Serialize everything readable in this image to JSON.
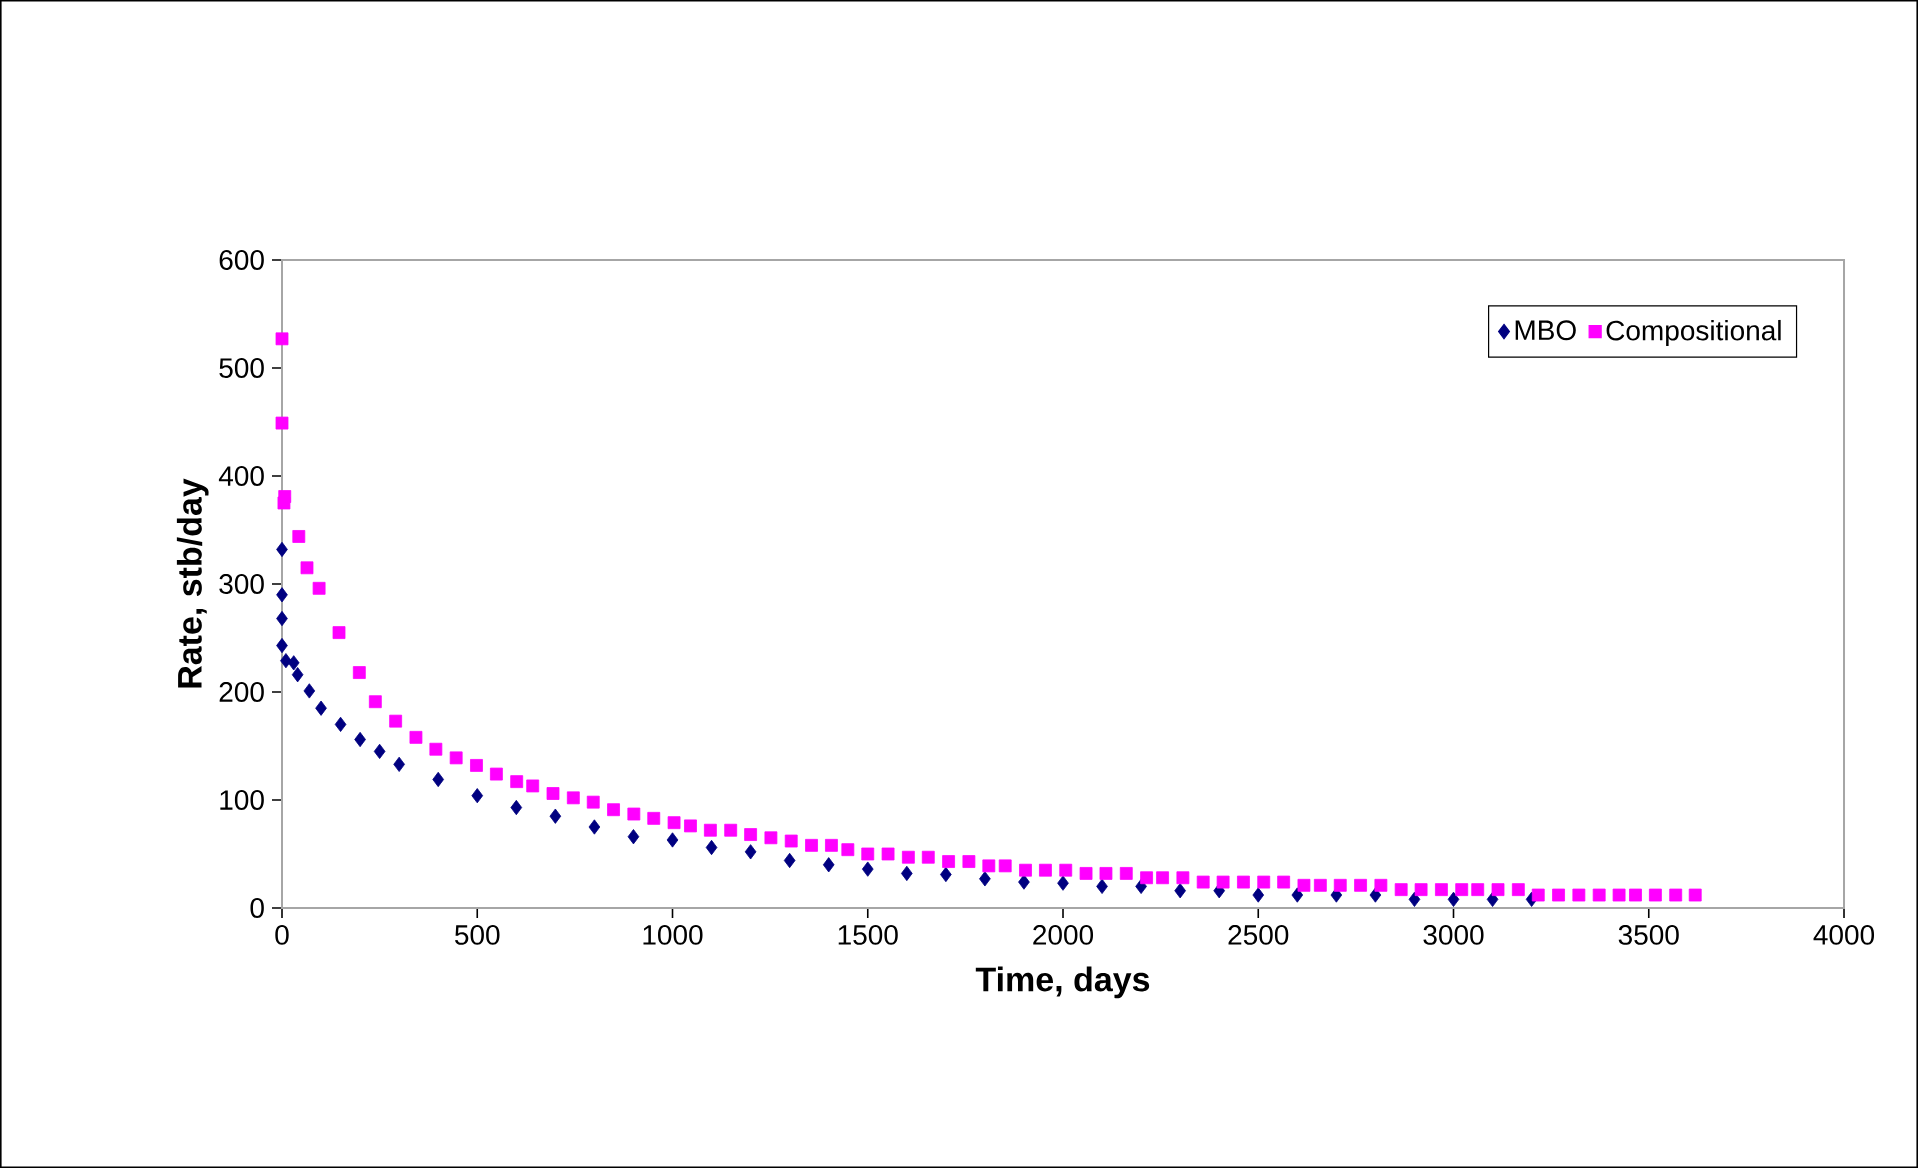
{
  "chart_data": {
    "type": "scatter",
    "xlabel": "Time, days",
    "ylabel": "Rate, stb/day",
    "xlim": [
      0,
      4000
    ],
    "xticks": [
      0,
      500,
      1000,
      1500,
      2000,
      2500,
      3000,
      3500,
      4000
    ],
    "ylim": [
      0,
      600
    ],
    "yticks": [
      0,
      100,
      200,
      300,
      400,
      500,
      600
    ],
    "legend": "top right",
    "series": [
      {
        "name": "MBO",
        "color": "#000080",
        "marker": "diamond",
        "x": [
          0,
          0,
          0,
          0,
          10,
          30,
          40,
          70,
          100,
          150,
          200,
          250,
          300,
          400,
          500,
          600,
          700,
          800,
          900,
          1000,
          1100,
          1200,
          1300,
          1400,
          1500,
          1600,
          1700,
          1800,
          1900,
          2000,
          2100,
          2200,
          2300,
          2400,
          2500,
          2600,
          2700,
          2800,
          2900,
          3000,
          3100,
          3200
        ],
        "values": [
          332,
          290,
          268,
          243,
          229,
          227,
          216,
          201,
          185,
          170,
          156,
          145,
          133,
          119,
          104,
          93,
          85,
          75,
          66,
          63,
          56,
          52,
          44,
          40,
          36,
          32,
          31,
          27,
          24,
          23,
          20,
          20,
          16,
          16,
          12,
          12,
          12,
          12,
          8,
          8,
          8,
          8
        ]
      },
      {
        "name": "Compositional",
        "color": "#ff00ff",
        "marker": "square",
        "x": [
          0,
          0,
          5,
          7,
          43,
          64,
          95,
          146,
          198,
          239,
          291,
          343,
          394,
          446,
          498,
          549,
          601,
          642,
          694,
          746,
          797,
          849,
          901,
          952,
          1004,
          1046,
          1097,
          1149,
          1200,
          1252,
          1304,
          1356,
          1407,
          1449,
          1500,
          1552,
          1604,
          1655,
          1707,
          1759,
          1810,
          1852,
          1904,
          1955,
          2007,
          2059,
          2110,
          2162,
          2214,
          2255,
          2307,
          2359,
          2410,
          2462,
          2514,
          2565,
          2617,
          2659,
          2710,
          2762,
          2814,
          2866,
          2917,
          2969,
          3021,
          3062,
          3114,
          3166,
          3217,
          3269,
          3321,
          3373,
          3424,
          3466,
          3517,
          3569,
          3619
        ],
        "values": [
          527,
          449,
          375,
          381,
          344,
          315,
          296,
          255,
          218,
          191,
          173,
          158,
          147,
          139,
          132,
          124,
          117,
          113,
          106,
          102,
          98,
          91,
          87,
          83,
          79,
          76,
          72,
          72,
          68,
          65,
          62,
          58,
          58,
          54,
          50,
          50,
          47,
          47,
          43,
          43,
          39,
          39,
          35,
          35,
          35,
          32,
          32,
          32,
          28,
          28,
          28,
          24,
          24,
          24,
          24,
          24,
          21,
          21,
          21,
          21,
          21,
          17,
          17,
          17,
          17,
          17,
          17,
          17,
          12,
          12,
          12,
          12,
          12,
          12,
          12,
          12,
          12
        ]
      }
    ]
  }
}
